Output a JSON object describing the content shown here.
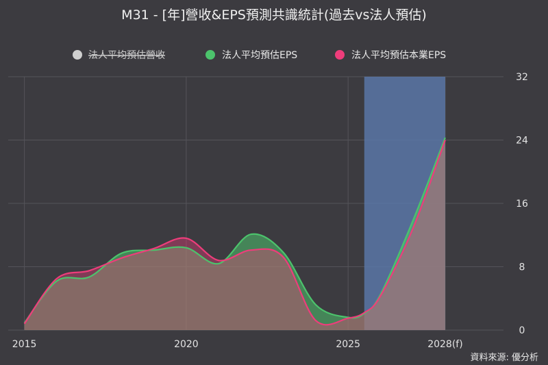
{
  "title": "M31 - [年]營收&EPS預測共識統計(過去vs法人預估)",
  "credit": "資料來源: 優分析",
  "colors": {
    "background": "#3c3b40",
    "revenue": "#cfcfcf",
    "eps": "#4cc36c",
    "core_eps": "#ee3d7b",
    "forecast_band": "#5a79ab"
  },
  "chart_data": {
    "type": "area",
    "title": "M31 - [年]營收&EPS預測共識統計(過去vs法人預估)",
    "xlabel": "",
    "ylabel": "",
    "x_ticks": [
      "2015",
      "2020",
      "2025",
      "2028(f)"
    ],
    "x_tick_values": [
      2015,
      2020,
      2025,
      2028
    ],
    "y_ticks": [
      "0",
      "8",
      "16",
      "24",
      "32"
    ],
    "y_tick_values": [
      0,
      8,
      16,
      24,
      32
    ],
    "ylim": [
      0,
      32
    ],
    "xlim": [
      2014.5,
      2029.8
    ],
    "y_axis_side": "right",
    "grid": true,
    "legend_position": "top",
    "forecast_band": {
      "from": 2025.5,
      "to": 2028
    },
    "series": [
      {
        "name": "法人平均預估營收",
        "visible": false,
        "values": []
      },
      {
        "name": "法人平均預估EPS",
        "visible": true,
        "points": [
          [
            2015,
            0.9
          ],
          [
            2016,
            6.2
          ],
          [
            2017,
            6.7
          ],
          [
            2018,
            9.7
          ],
          [
            2019,
            10.1
          ],
          [
            2020,
            10.4
          ],
          [
            2021,
            8.4
          ],
          [
            2022,
            12.1
          ],
          [
            2023,
            9.8
          ],
          [
            2024,
            3.2
          ],
          [
            2025,
            1.6
          ],
          [
            2025.5,
            2.1
          ],
          [
            2026,
            4.5
          ],
          [
            2027,
            13.8
          ],
          [
            2028,
            24.3
          ]
        ]
      },
      {
        "name": "法人平均預估本業EPS",
        "visible": true,
        "points": [
          [
            2015,
            0.8
          ],
          [
            2016,
            6.5
          ],
          [
            2017,
            7.5
          ],
          [
            2018,
            9.1
          ],
          [
            2019,
            10.3
          ],
          [
            2020,
            11.6
          ],
          [
            2021,
            8.8
          ],
          [
            2022,
            10.1
          ],
          [
            2023,
            9.2
          ],
          [
            2024,
            1.2
          ],
          [
            2025,
            1.5
          ],
          [
            2025.5,
            2.2
          ],
          [
            2026,
            4.3
          ],
          [
            2027,
            12.8
          ],
          [
            2028,
            24.0
          ]
        ]
      }
    ]
  }
}
